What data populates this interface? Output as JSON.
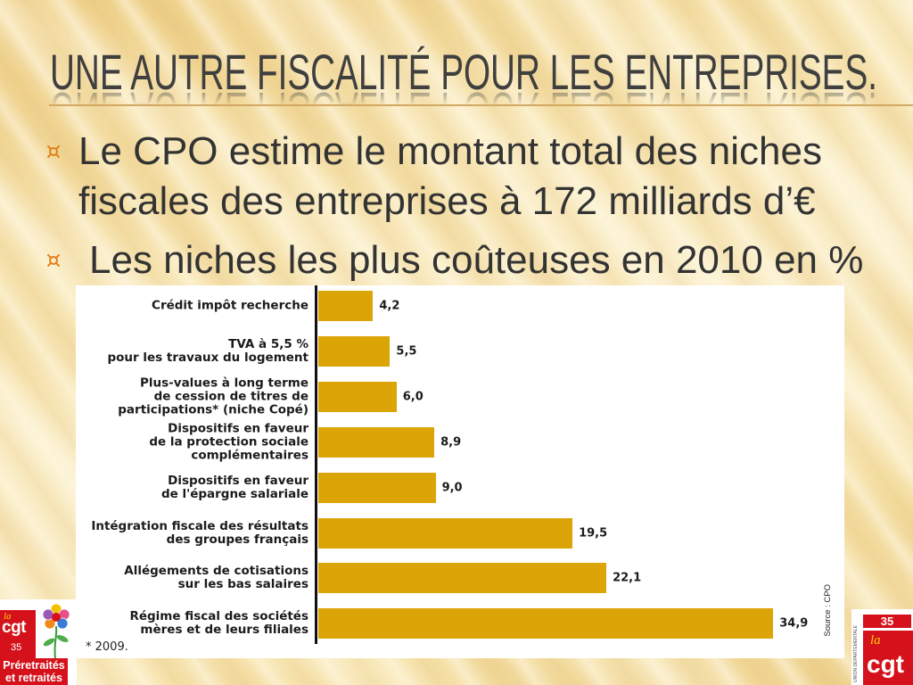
{
  "slide": {
    "title": "UNE AUTRE FISCALITÉ POUR LES ENTREPRISES.",
    "bullets": [
      {
        "icon": "currency-sign-bullet",
        "text": "Le CPO estime le montant total des niches fiscales des entreprises à 172 milliards d’€"
      },
      {
        "icon": "currency-sign-bullet",
        "text": "Les niches les plus coûteuses en 2010 en %"
      }
    ]
  },
  "chart_data": {
    "type": "bar",
    "orientation": "horizontal",
    "categories": [
      "Crédit impôt recherche",
      "TVA à 5,5 %\npour les travaux du logement",
      "Plus-values à long terme\nde cession de titres de\nparticipations* (niche Copé)",
      "Dispositifs en faveur\nde la protection sociale\ncomplémentaires",
      "Dispositifs en faveur\nde l'épargne salariale",
      "Intégration fiscale des résultats\ndes groupes français",
      "Allégements de cotisations\nsur les bas salaires",
      "Régime fiscal des sociétés\nmères et de leurs filiales"
    ],
    "values": [
      4.2,
      5.5,
      6.0,
      8.9,
      9.0,
      19.5,
      22.1,
      34.9
    ],
    "value_labels": [
      "4,2",
      "5,5",
      "6,0",
      "8,9",
      "9,0",
      "19,5",
      "22,1",
      "34,9"
    ],
    "footnote": "* 2009.",
    "source": "Source : CPO",
    "grid": false,
    "legend": "none"
  },
  "logos": {
    "left": {
      "emblem": "flower-emblem",
      "small_text": "la",
      "brand": "cgt",
      "number": "35",
      "caption": [
        "Préretraités",
        "et retraités"
      ]
    },
    "right": {
      "side_text": "UNION DÉPARTEMENTALE",
      "number": "35",
      "small_text": "la",
      "brand": "cgt"
    }
  },
  "colors": {
    "title": "#3f3f3f",
    "body_text": "#333333",
    "bullet_accent": "#e2801a",
    "rule": "#d3a863",
    "bar": "#dba507",
    "axis": "#111111",
    "logo_red": "#d5121b",
    "logo_yellow": "#f4cf0a"
  }
}
